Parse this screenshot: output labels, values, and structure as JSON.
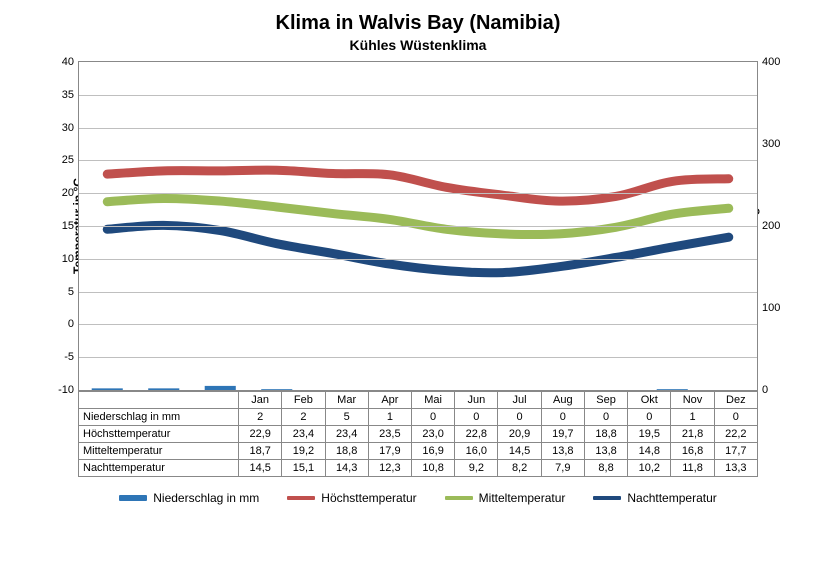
{
  "chart": {
    "title": "Klima in Walvis Bay (Namibia)",
    "subtitle": "Kühles Wüstenklima",
    "ylabel_left": "Temperatur in °C",
    "ylabel_right": "Niederschlag in mm",
    "y_left": {
      "min": -10,
      "max": 40,
      "step": 5
    },
    "y_right": {
      "min": 0,
      "max": 400,
      "step": 100
    },
    "months": [
      "Jan",
      "Feb",
      "Mar",
      "Apr",
      "Mai",
      "Jun",
      "Jul",
      "Aug",
      "Sep",
      "Okt",
      "Nov",
      "Dez"
    ],
    "series": {
      "niederschlag": {
        "label": "Niederschlag in mm",
        "color": "#2e75b6",
        "width": 4,
        "values": [
          2,
          2,
          5,
          1,
          0,
          0,
          0,
          0,
          0,
          0,
          1,
          0
        ],
        "axis": "right",
        "style": "bar"
      },
      "hoechst": {
        "label": "Höchsttemperatur",
        "color": "#c0504d",
        "width": 3,
        "values": [
          22.9,
          23.4,
          23.4,
          23.5,
          23.0,
          22.8,
          20.9,
          19.7,
          18.8,
          19.5,
          21.8,
          22.2
        ],
        "axis": "left",
        "style": "line"
      },
      "mittel": {
        "label": "Mitteltemperatur",
        "color": "#9bbb59",
        "width": 3,
        "values": [
          18.7,
          19.2,
          18.8,
          17.9,
          16.9,
          16.0,
          14.5,
          13.8,
          13.8,
          14.8,
          16.8,
          17.7
        ],
        "axis": "left",
        "style": "line"
      },
      "nacht": {
        "label": "Nachttemperatur",
        "color": "#1f497d",
        "width": 3,
        "values": [
          14.5,
          15.1,
          14.3,
          12.3,
          10.8,
          9.2,
          8.2,
          7.9,
          8.8,
          10.2,
          11.8,
          13.3
        ],
        "axis": "left",
        "style": "line"
      }
    },
    "table_rows": [
      "niederschlag",
      "hoechst",
      "mittel",
      "nacht"
    ],
    "legend_order": [
      "niederschlag",
      "hoechst",
      "mittel",
      "nacht"
    ],
    "grid_color": "#bfbfbf",
    "border_color": "#888888"
  }
}
